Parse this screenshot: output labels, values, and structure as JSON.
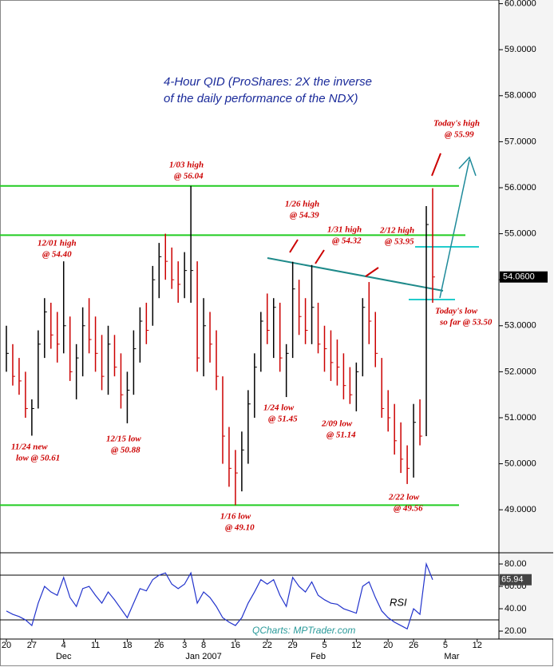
{
  "chart_data": {
    "type": "ohlc",
    "title": [
      "4-Hour QID (ProShares: 2X the inverse",
      "of the daily performance of the NDX)"
    ],
    "high": [
      53.0,
      52.6,
      52.3,
      52.0,
      51.4,
      52.9,
      53.6,
      53.5,
      53.3,
      54.4,
      53.2,
      52.6,
      53.4,
      53.6,
      53.2,
      52.8,
      53.0,
      52.8,
      52.4,
      52.0,
      52.9,
      53.4,
      53.5,
      54.3,
      54.8,
      55.0,
      54.7,
      54.4,
      54.6,
      56.04,
      54.4,
      53.6,
      53.3,
      52.9,
      51.9,
      50.8,
      50.3,
      50.7,
      51.6,
      52.4,
      53.3,
      53.7,
      53.6,
      53.5,
      52.6,
      54.39,
      54.0,
      53.6,
      54.32,
      53.5,
      53.0,
      52.9,
      52.7,
      52.4,
      52.1,
      52.2,
      53.6,
      53.95,
      53.3,
      52.3,
      51.6,
      51.3,
      50.9,
      50.4,
      51.3,
      51.4,
      55.6,
      55.99
    ],
    "low": [
      52.0,
      51.7,
      51.5,
      51.0,
      50.61,
      51.2,
      52.3,
      52.5,
      52.2,
      52.4,
      51.8,
      51.4,
      51.9,
      52.4,
      52.0,
      51.6,
      51.5,
      51.9,
      51.2,
      50.88,
      51.5,
      52.2,
      52.6,
      53.0,
      53.6,
      54.0,
      53.8,
      53.5,
      53.6,
      53.5,
      52.0,
      51.9,
      52.2,
      51.6,
      50.0,
      49.5,
      49.1,
      49.4,
      50.0,
      51.0,
      52.0,
      52.6,
      52.3,
      52.0,
      51.45,
      52.3,
      52.8,
      52.6,
      52.6,
      52.4,
      52.0,
      51.8,
      51.7,
      51.4,
      51.3,
      51.14,
      51.9,
      52.6,
      52.1,
      51.0,
      50.7,
      50.2,
      49.8,
      49.56,
      49.7,
      50.4,
      50.6,
      53.5
    ],
    "close": [
      52.4,
      51.9,
      51.8,
      51.2,
      51.2,
      52.6,
      53.3,
      52.8,
      52.6,
      53.0,
      52.0,
      52.3,
      53.0,
      52.7,
      52.4,
      51.9,
      52.6,
      52.1,
      51.5,
      51.6,
      52.5,
      53.1,
      52.9,
      54.0,
      54.5,
      54.4,
      54.0,
      53.9,
      54.2,
      54.2,
      52.3,
      53.0,
      52.6,
      51.9,
      50.6,
      49.9,
      49.8,
      50.3,
      51.3,
      52.1,
      53.1,
      52.9,
      53.4,
      52.3,
      52.4,
      53.8,
      53.2,
      52.9,
      53.4,
      52.6,
      52.5,
      52.2,
      52.1,
      51.7,
      51.5,
      52.0,
      53.4,
      53.1,
      52.4,
      51.2,
      51.0,
      50.5,
      50.1,
      49.9,
      50.9,
      50.6,
      55.2,
      54.06
    ],
    "ylim": [
      48.1,
      60.08
    ],
    "yticks": [
      {
        "value": 49,
        "label": "49.0000"
      },
      {
        "value": 50,
        "label": "50.0000"
      },
      {
        "value": 51,
        "label": "51.0000"
      },
      {
        "value": 52,
        "label": "52.0000"
      },
      {
        "value": 53,
        "label": "53.0000"
      },
      {
        "value": 54,
        "label": "54.0000"
      },
      {
        "value": 55,
        "label": "55.0000"
      },
      {
        "value": 56,
        "label": "56.0000"
      },
      {
        "value": 57,
        "label": "57.0000"
      },
      {
        "value": 58,
        "label": "58.0000"
      },
      {
        "value": 59,
        "label": "59.0000"
      },
      {
        "value": 60,
        "label": "60.0000"
      }
    ],
    "last_price": {
      "value": 54.06,
      "label": "54.0600"
    },
    "levels": [
      56.04,
      54.97,
      49.1
    ],
    "xticks": [
      {
        "value": 0,
        "label": "20"
      },
      {
        "value": 4,
        "label": "27"
      },
      {
        "value": 9,
        "label": "4"
      },
      {
        "value": 14,
        "label": "11"
      },
      {
        "value": 19,
        "label": "18"
      },
      {
        "value": 24,
        "label": "26"
      },
      {
        "value": 28,
        "label": "3"
      },
      {
        "value": 31,
        "label": "8"
      },
      {
        "value": 36,
        "label": "16"
      },
      {
        "value": 41,
        "label": "22"
      },
      {
        "value": 45,
        "label": "29"
      },
      {
        "value": 50,
        "label": "5"
      },
      {
        "value": 55,
        "label": "12"
      },
      {
        "value": 60,
        "label": "20"
      },
      {
        "value": 64,
        "label": "26"
      },
      {
        "value": 69,
        "label": "5"
      },
      {
        "value": 74,
        "label": "12"
      }
    ],
    "month_labels": [
      {
        "value": 9,
        "label": "Dec"
      },
      {
        "value": 31,
        "label": "Jan 2007"
      },
      {
        "value": 49,
        "label": "Feb"
      },
      {
        "value": 70,
        "label": "Mar"
      }
    ],
    "annotations": [
      {
        "lines": [
          "12/01 high",
          "@ 54.40"
        ]
      },
      {
        "lines": [
          "1/03 high",
          "@ 56.04"
        ]
      },
      {
        "lines": [
          "1/26 high",
          "@ 54.39"
        ]
      },
      {
        "lines": [
          "1/31 high",
          "@ 54.32"
        ]
      },
      {
        "lines": [
          "2/12 high",
          "@ 53.95"
        ]
      },
      {
        "lines": [
          "Today's high",
          "@ 55.99"
        ]
      },
      {
        "lines": [
          "Today's low",
          "so far  @ 53.50"
        ]
      },
      {
        "lines": [
          "11/24 new",
          "low @ 50.61"
        ]
      },
      {
        "lines": [
          "12/15 low",
          "@ 50.88"
        ]
      },
      {
        "lines": [
          "1/24 low",
          "@ 51.45"
        ]
      },
      {
        "lines": [
          "2/09 low",
          "@ 51.14"
        ]
      },
      {
        "lines": [
          "1/16 low",
          "@ 49.10"
        ]
      },
      {
        "lines": [
          "2/22 low",
          "@ 49.56"
        ]
      }
    ],
    "rsi": {
      "name": "RSI",
      "color": "#2233cc",
      "values": [
        38,
        35,
        33,
        30,
        25,
        45,
        60,
        55,
        52,
        68,
        50,
        42,
        58,
        60,
        52,
        45,
        55,
        48,
        40,
        32,
        45,
        58,
        56,
        66,
        70,
        72,
        62,
        58,
        62,
        72,
        45,
        55,
        50,
        42,
        32,
        28,
        25,
        32,
        45,
        55,
        66,
        62,
        66,
        52,
        42,
        68,
        60,
        55,
        64,
        52,
        48,
        45,
        44,
        40,
        38,
        36,
        60,
        64,
        50,
        38,
        32,
        28,
        25,
        22,
        40,
        35,
        80,
        65.94
      ],
      "ylim": [
        12.9,
        89.3
      ],
      "yticks": [
        {
          "value": 20,
          "label": "20.00"
        },
        {
          "value": 40,
          "label": "40.00"
        },
        {
          "value": 60,
          "label": "60.00"
        },
        {
          "value": 80,
          "label": "80.00"
        }
      ],
      "levels": [
        70,
        30
      ],
      "last": {
        "value": 65.94,
        "label": "65.94"
      }
    },
    "credit": "QCharts: MPTrader.com"
  }
}
